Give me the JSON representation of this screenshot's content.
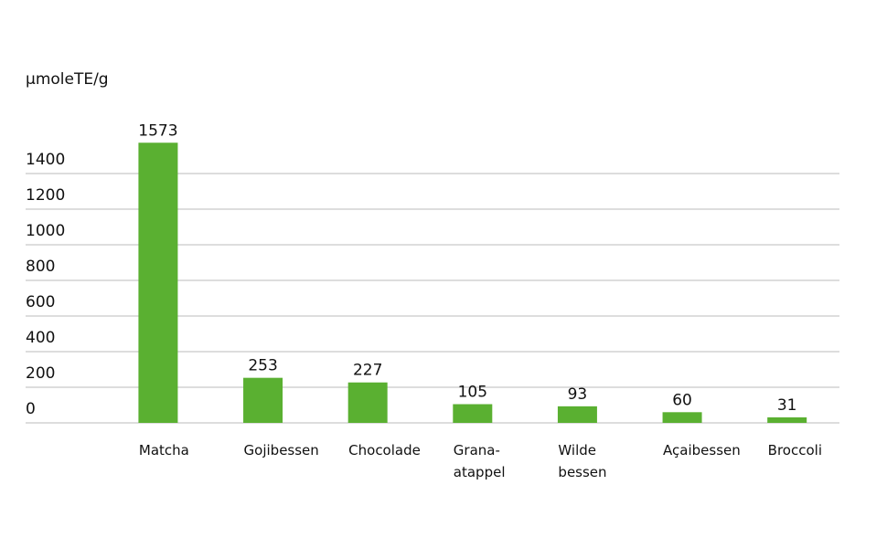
{
  "chart_data": {
    "type": "bar",
    "y_label": "µmoleTE/g",
    "categories": [
      "Matcha",
      "Gojibessen",
      "Chocolade",
      "Grana-\natappel",
      "Wilde\nbessen",
      "Açaibessen",
      "Broccoli"
    ],
    "values": [
      1573,
      253,
      227,
      105,
      93,
      60,
      31
    ],
    "color": "#5ab031",
    "ylim": [
      0,
      1600
    ],
    "yticks": [
      0,
      200,
      400,
      600,
      800,
      1000,
      1200,
      1400
    ],
    "grid": true
  }
}
